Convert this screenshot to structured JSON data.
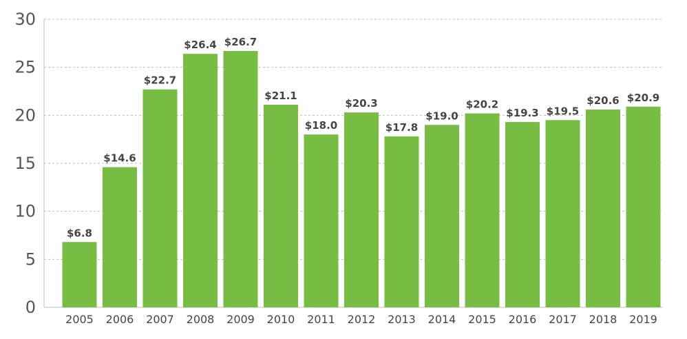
{
  "chart_data": {
    "type": "bar",
    "title": "",
    "xlabel": "",
    "ylabel": "",
    "categories": [
      "2005",
      "2006",
      "2007",
      "2008",
      "2009",
      "2010",
      "2011",
      "2012",
      "2013",
      "2014",
      "2015",
      "2016",
      "2017",
      "2018",
      "2019"
    ],
    "values": [
      6.8,
      14.6,
      22.7,
      26.4,
      26.7,
      21.1,
      18.0,
      20.3,
      17.8,
      19.0,
      20.2,
      19.3,
      19.5,
      20.6,
      20.9
    ],
    "data_labels": [
      "$6.8",
      "$14.6",
      "$22.7",
      "$26.4",
      "$26.7",
      "$21.1",
      "$18.0",
      "$20.3",
      "$17.8",
      "$19.0",
      "$20.2",
      "$19.3",
      "$19.5",
      "$20.6",
      "$20.9"
    ],
    "ylim": [
      0,
      30
    ],
    "y_ticks": [
      0,
      5,
      10,
      15,
      20,
      25,
      30
    ],
    "grid": true,
    "legend": "none",
    "bar_color": "#77bc43",
    "label_color": "#444444",
    "grid_color": "#bdbdbd"
  }
}
